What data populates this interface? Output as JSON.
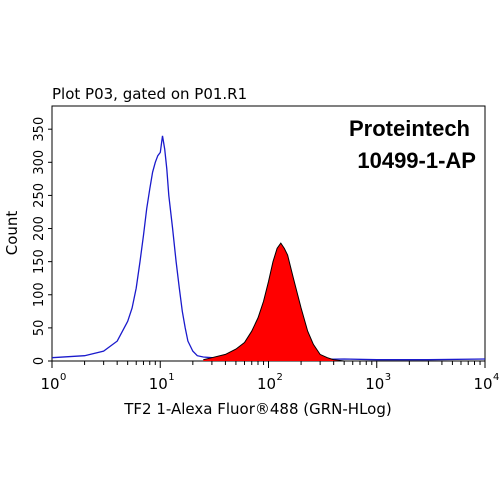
{
  "chart_data": {
    "type": "area",
    "title": "Plot P03, gated on P01.R1",
    "annotation_lines": [
      "Proteintech",
      "10499-1-AP"
    ],
    "xlabel": "TF2 1-Alexa Fluor®488 (GRN-HLog)",
    "ylabel": "Count",
    "x_scale": "log",
    "xlim": [
      1,
      10000
    ],
    "ylim": [
      0,
      385
    ],
    "x_ticks": [
      {
        "value": 1,
        "base": "10",
        "exp": "0"
      },
      {
        "value": 10,
        "base": "10",
        "exp": "1"
      },
      {
        "value": 100,
        "base": "10",
        "exp": "2"
      },
      {
        "value": 1000,
        "base": "10",
        "exp": "3"
      },
      {
        "value": 10000,
        "base": "10",
        "exp": "4"
      }
    ],
    "y_ticks": [
      "0",
      "50",
      "100",
      "150",
      "200",
      "250",
      "300",
      "350"
    ],
    "y_tick_values": [
      0,
      50,
      100,
      150,
      200,
      250,
      300,
      350
    ],
    "grid": false,
    "series": [
      {
        "color": "#1a1acc",
        "fill": "none",
        "x": [
          1,
          2,
          3,
          4,
          5,
          5.5,
          6,
          6.5,
          7,
          7.5,
          8,
          8.5,
          9,
          9.5,
          10,
          10.5,
          11,
          11.5,
          12,
          13,
          14,
          15,
          16,
          17,
          18,
          20,
          22,
          25,
          30,
          40,
          60,
          100,
          200,
          500,
          1000,
          3000,
          10000
        ],
        "y": [
          5,
          8,
          15,
          30,
          60,
          80,
          110,
          150,
          190,
          230,
          260,
          285,
          300,
          310,
          315,
          340,
          320,
          290,
          250,
          200,
          150,
          110,
          75,
          50,
          30,
          15,
          8,
          6,
          5,
          4,
          3,
          2,
          2,
          3,
          2,
          2,
          3
        ]
      },
      {
        "color": "#ff0000",
        "fill": "#ff0000",
        "x": [
          25,
          30,
          40,
          50,
          60,
          70,
          80,
          90,
          100,
          110,
          120,
          130,
          140,
          150,
          170,
          200,
          230,
          260,
          300,
          350,
          400,
          500
        ],
        "y": [
          2,
          5,
          10,
          18,
          28,
          45,
          65,
          90,
          120,
          150,
          170,
          178,
          170,
          160,
          125,
          80,
          45,
          25,
          10,
          5,
          2,
          0
        ]
      }
    ]
  }
}
